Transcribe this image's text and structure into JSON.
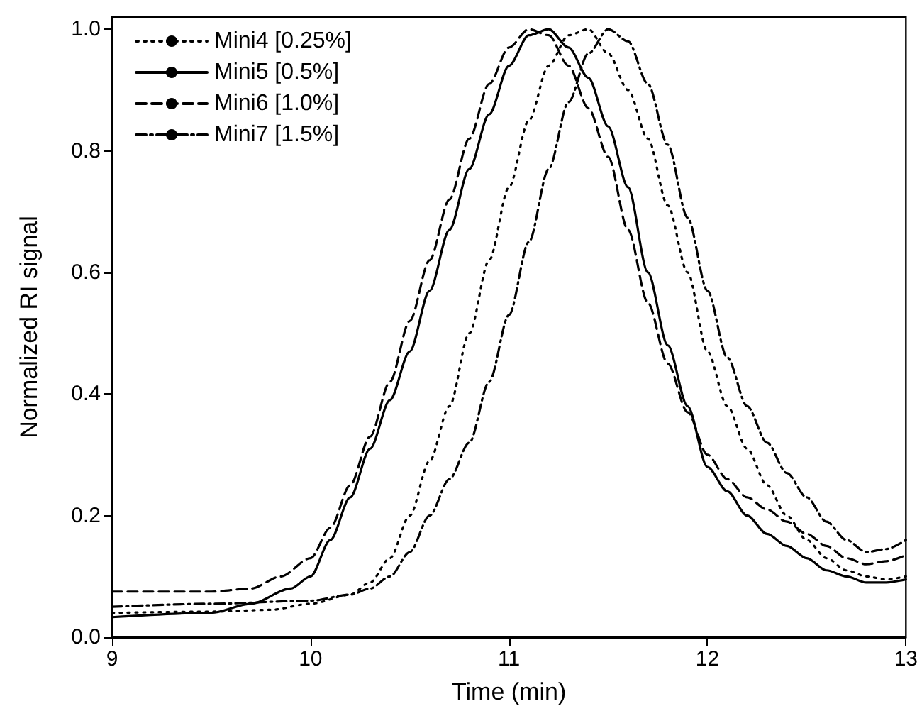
{
  "chart_data": {
    "type": "line",
    "xlabel": "Time (min)",
    "ylabel": "Normalized RI signal",
    "xlim": [
      9,
      13
    ],
    "xticks": [
      9,
      10,
      11,
      12,
      13
    ],
    "ylim": [
      0,
      1.02
    ],
    "yticks": [
      {
        "value": 0,
        "label": "0.0"
      },
      {
        "value": 0.2,
        "label": "0.2"
      },
      {
        "value": 0.4,
        "label": "0.4"
      },
      {
        "value": 0.6,
        "label": "0.6"
      },
      {
        "value": 0.8,
        "label": "0.8"
      },
      {
        "value": 1,
        "label": "1.0"
      }
    ],
    "grid": false,
    "legend": "top left",
    "marker": "none",
    "series": [
      {
        "name": "Mini4 [0.25%]",
        "color": "#000000",
        "line_style": "dotted",
        "x": [
          9,
          9.5,
          9.8,
          10,
          10.2,
          10.3,
          10.4,
          10.5,
          10.6,
          10.7,
          10.8,
          10.9,
          11.0,
          11.1,
          11.2,
          11.3,
          11.4,
          11.5,
          11.6,
          11.7,
          11.8,
          11.9,
          12.0,
          12.1,
          12.2,
          12.3,
          12.4,
          12.5,
          12.6,
          12.7,
          12.8,
          12.9,
          13
        ],
        "values": [
          0.04,
          0.042,
          0.045,
          0.055,
          0.07,
          0.09,
          0.13,
          0.2,
          0.29,
          0.38,
          0.5,
          0.62,
          0.74,
          0.85,
          0.94,
          0.99,
          1.0,
          0.96,
          0.9,
          0.82,
          0.71,
          0.6,
          0.47,
          0.38,
          0.31,
          0.25,
          0.2,
          0.16,
          0.13,
          0.11,
          0.1,
          0.095,
          0.1
        ]
      },
      {
        "name": "Mini5 [0.5%]",
        "color": "#000000",
        "line_style": "solid",
        "x": [
          9,
          9.5,
          9.7,
          9.9,
          10,
          10.1,
          10.2,
          10.3,
          10.4,
          10.5,
          10.6,
          10.7,
          10.8,
          10.9,
          11.0,
          11.1,
          11.2,
          11.3,
          11.4,
          11.5,
          11.6,
          11.7,
          11.8,
          11.9,
          12,
          12.1,
          12.2,
          12.3,
          12.4,
          12.5,
          12.6,
          12.7,
          12.8,
          12.9,
          13
        ],
        "values": [
          0.033,
          0.04,
          0.055,
          0.08,
          0.1,
          0.16,
          0.23,
          0.31,
          0.39,
          0.47,
          0.57,
          0.67,
          0.77,
          0.86,
          0.94,
          0.99,
          1.0,
          0.97,
          0.92,
          0.84,
          0.74,
          0.6,
          0.48,
          0.38,
          0.28,
          0.24,
          0.2,
          0.17,
          0.15,
          0.13,
          0.11,
          0.1,
          0.09,
          0.09,
          0.095
        ]
      },
      {
        "name": "Mini6 [1.0%]",
        "color": "#000000",
        "line_style": "dashed",
        "x": [
          9,
          9.5,
          9.7,
          9.85,
          10,
          10.1,
          10.2,
          10.3,
          10.4,
          10.5,
          10.6,
          10.7,
          10.8,
          10.9,
          11.0,
          11.1,
          11.2,
          11.3,
          11.4,
          11.5,
          11.6,
          11.7,
          11.8,
          11.9,
          12,
          12.1,
          12.2,
          12.3,
          12.4,
          12.5,
          12.6,
          12.7,
          12.8,
          12.9,
          13
        ],
        "values": [
          0.075,
          0.075,
          0.08,
          0.1,
          0.13,
          0.18,
          0.25,
          0.33,
          0.42,
          0.52,
          0.62,
          0.72,
          0.82,
          0.91,
          0.97,
          1.0,
          0.99,
          0.94,
          0.87,
          0.79,
          0.67,
          0.55,
          0.45,
          0.37,
          0.3,
          0.26,
          0.23,
          0.21,
          0.19,
          0.17,
          0.15,
          0.13,
          0.12,
          0.125,
          0.135
        ]
      },
      {
        "name": "Mini7 [1.5%]",
        "color": "#000000",
        "line_style": "dashdot",
        "x": [
          9,
          9.5,
          10,
          10.2,
          10.3,
          10.4,
          10.5,
          10.6,
          10.7,
          10.8,
          10.9,
          11.0,
          11.1,
          11.2,
          11.3,
          11.4,
          11.5,
          11.6,
          11.7,
          11.8,
          11.9,
          12.0,
          12.1,
          12.2,
          12.3,
          12.4,
          12.5,
          12.6,
          12.7,
          12.8,
          12.9,
          13
        ],
        "values": [
          0.05,
          0.055,
          0.06,
          0.07,
          0.08,
          0.1,
          0.14,
          0.2,
          0.26,
          0.32,
          0.42,
          0.53,
          0.65,
          0.77,
          0.88,
          0.96,
          1.0,
          0.98,
          0.91,
          0.81,
          0.69,
          0.57,
          0.46,
          0.38,
          0.32,
          0.27,
          0.23,
          0.19,
          0.16,
          0.14,
          0.145,
          0.16
        ]
      }
    ]
  }
}
